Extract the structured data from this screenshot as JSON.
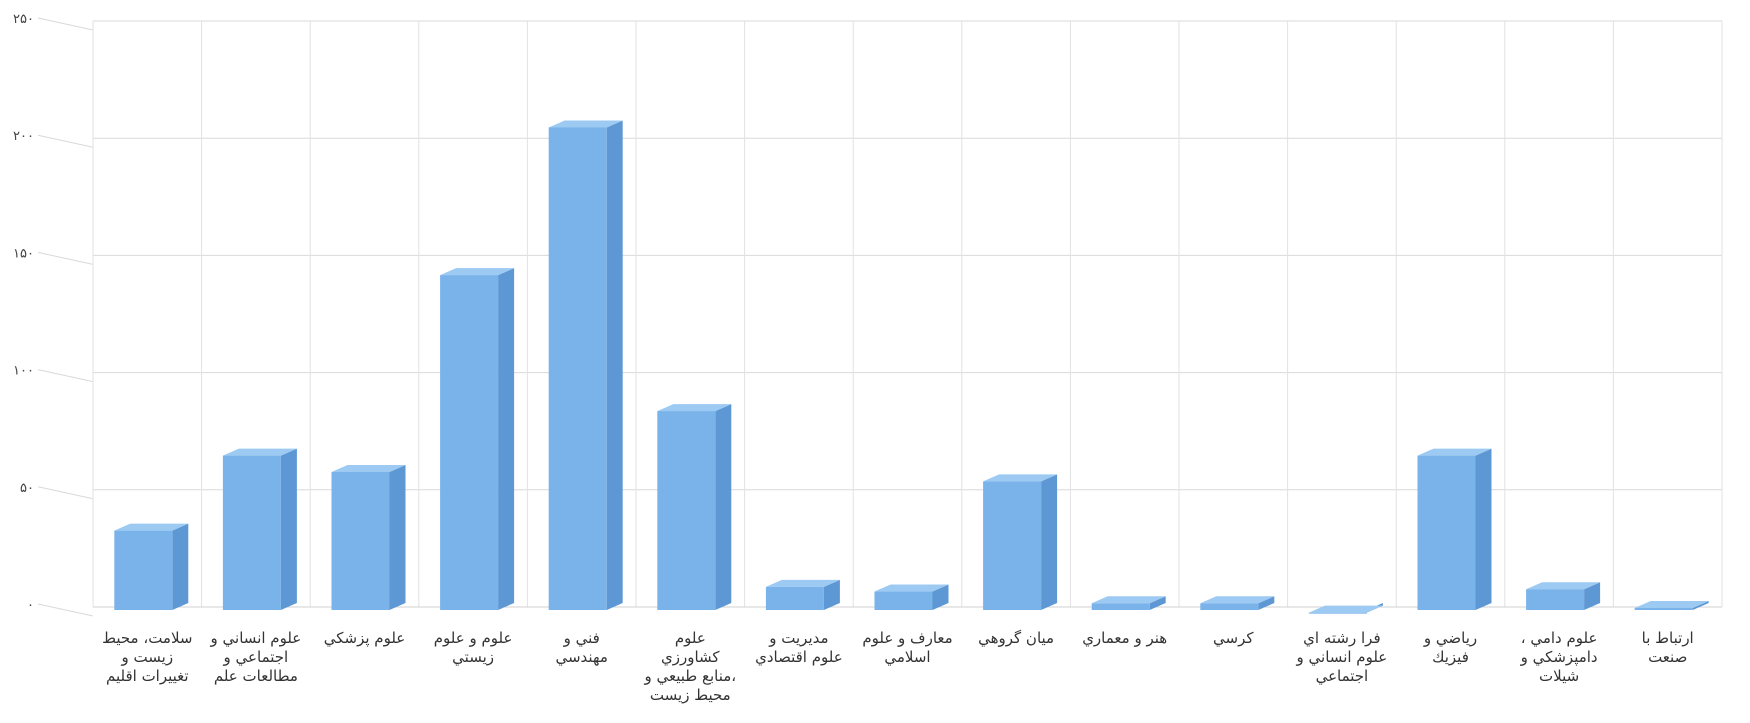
{
  "chart_data": {
    "type": "bar",
    "categories": [
      [
        "سلامت، محيط",
        "زيست و",
        "تغييرات اقليم"
      ],
      [
        "علوم انساني و",
        "اجتماعي و",
        "مطالعات علم"
      ],
      [
        "علوم پزشكي"
      ],
      [
        "علوم و علوم",
        "زيستي"
      ],
      [
        "فني و",
        "مهندسي"
      ],
      [
        "علوم",
        "كشاورزي",
        "،منابع طبيعي و",
        "محيط زيست"
      ],
      [
        "مديريت و",
        "علوم اقتصادي"
      ],
      [
        "معارف و علوم",
        "اسلامي"
      ],
      [
        "ميان گروهي"
      ],
      [
        "هنر و معماري"
      ],
      [
        "كرسي"
      ],
      [
        "فرا رشته اي",
        "علوم انساني و",
        "اجتماعي"
      ],
      [
        "رياضي و",
        "فيزيك"
      ],
      [
        "علوم دامي ،",
        "دامپزشكي و",
        "شيلات"
      ],
      [
        "ارتباط با",
        "صنعت"
      ]
    ],
    "values": [
      36,
      68,
      61,
      145,
      208,
      87,
      12,
      10,
      57,
      5,
      5,
      1,
      68,
      11,
      3
    ],
    "y_ticks": [
      "۰",
      "۵۰",
      "۱۰۰",
      "۱۵۰",
      "۲۰۰",
      "۲۵۰"
    ],
    "ylim": [
      0,
      250
    ],
    "grid": true,
    "bar_color": "#7ab3ea",
    "bar_side_color": "#5e98d4",
    "bar_top_color": "#9ccaf3",
    "title": "",
    "xlabel": "",
    "ylabel": ""
  }
}
